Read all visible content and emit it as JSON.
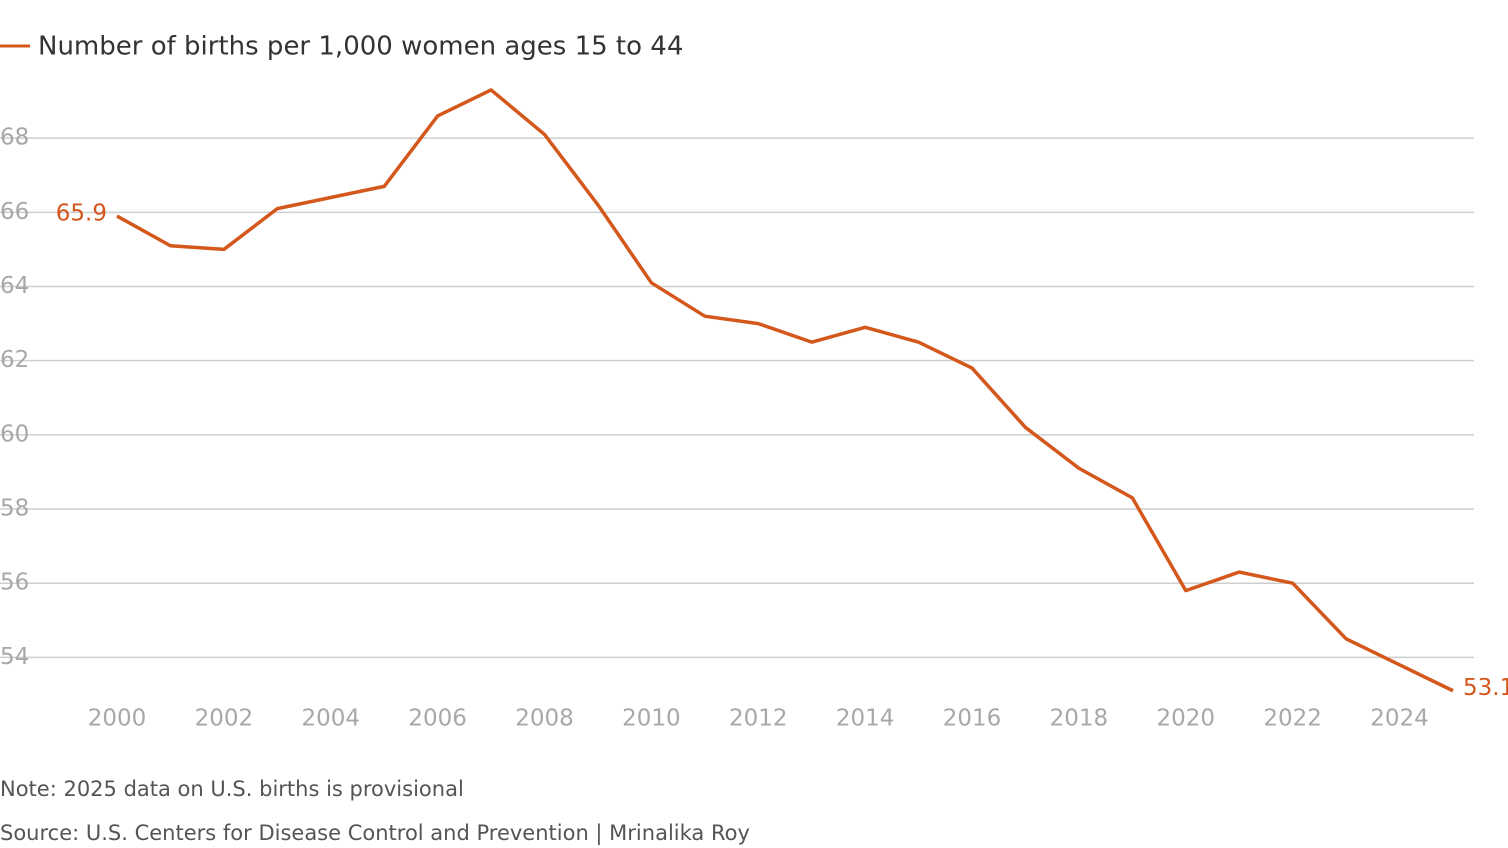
{
  "chart_data": {
    "type": "line",
    "x": [
      2000,
      2001,
      2002,
      2003,
      2004,
      2005,
      2006,
      2007,
      2008,
      2009,
      2010,
      2011,
      2012,
      2013,
      2014,
      2015,
      2016,
      2017,
      2018,
      2019,
      2020,
      2021,
      2022,
      2023,
      2024,
      2025
    ],
    "series": [
      {
        "name": "Number of births per 1,000 women ages 15 to 44",
        "color": "#d4571c",
        "values": [
          65.9,
          65.1,
          65.0,
          66.1,
          66.4,
          66.7,
          68.6,
          69.3,
          68.1,
          66.2,
          64.1,
          63.2,
          63.0,
          62.5,
          62.9,
          62.5,
          61.8,
          60.2,
          59.1,
          58.3,
          55.8,
          56.3,
          56.0,
          54.5,
          53.8,
          53.1
        ]
      }
    ],
    "xlim": [
      2000,
      2025
    ],
    "xticks": [
      2000,
      2002,
      2004,
      2006,
      2008,
      2010,
      2012,
      2014,
      2016,
      2018,
      2020,
      2022,
      2024
    ],
    "ylim": [
      52.5,
      70
    ],
    "yticks": [
      54,
      56,
      58,
      60,
      62,
      64,
      66,
      68
    ],
    "grid": true,
    "note": "Note: 2025 data on U.S. births is provisional",
    "source": "Source: U.S. Centers for Disease Control and Prevention | Mrinalika Roy"
  }
}
